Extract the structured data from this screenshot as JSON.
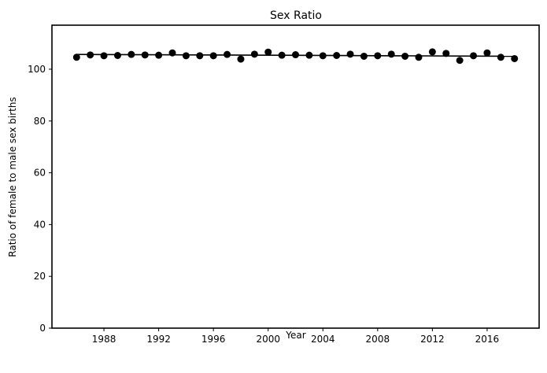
{
  "chart_data": {
    "type": "scatter",
    "title": "Sex Ratio",
    "xlabel": "Year",
    "ylabel": "Ratio of female to male sex births",
    "xlim": [
      1984.2,
      2019.8
    ],
    "ylim": [
      0,
      117
    ],
    "x_ticks": [
      1988,
      1992,
      1996,
      2000,
      2004,
      2008,
      2012,
      2016
    ],
    "y_ticks": [
      0,
      20,
      40,
      60,
      80,
      100
    ],
    "grid": false,
    "legend": "none",
    "colors": {
      "points": "#000000",
      "trend_line": "#000000",
      "axes": "#000000"
    },
    "series": [
      {
        "x": [
          1986,
          1987,
          1988,
          1989,
          1990,
          1991,
          1992,
          1993,
          1994,
          1995,
          1996,
          1997,
          1998,
          1999,
          2000,
          2001,
          2002,
          2003,
          2004,
          2005,
          2006,
          2007,
          2008,
          2009,
          2010,
          2011,
          2012,
          2013,
          2014,
          2015,
          2016,
          2017,
          2018
        ],
        "values": [
          104.6,
          105.5,
          105.2,
          105.3,
          105.7,
          105.5,
          105.4,
          106.3,
          105.2,
          105.2,
          105.2,
          105.7,
          103.9,
          105.8,
          106.6,
          105.4,
          105.6,
          105.4,
          105.2,
          105.3,
          105.8,
          105.0,
          105.2,
          105.8,
          105.0,
          104.6,
          106.7,
          106.1,
          103.4,
          105.2,
          106.3,
          104.6,
          104.1
        ]
      }
    ],
    "trend_line": {
      "x": [
        1986,
        2018
      ],
      "values": [
        105.7,
        105.0
      ]
    }
  }
}
